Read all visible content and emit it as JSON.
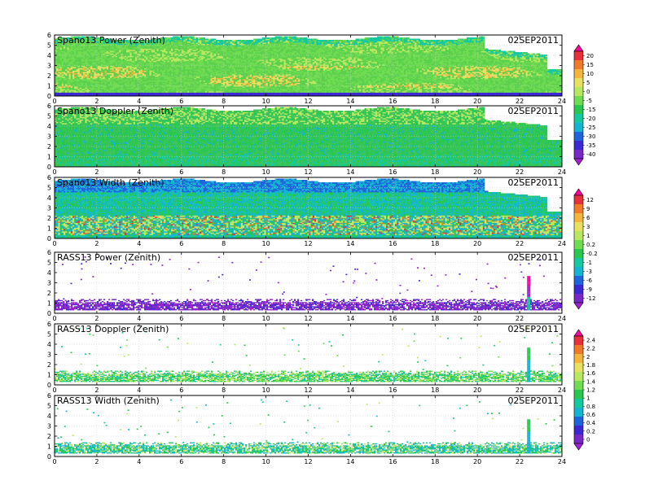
{
  "date_label": "02SEP2011",
  "x_ticks": [
    "0",
    "2",
    "4",
    "6",
    "8",
    "10",
    "12",
    "14",
    "16",
    "18",
    "20",
    "22",
    "24"
  ],
  "y_ticks": [
    "0",
    "1",
    "2",
    "3",
    "4",
    "5",
    "6"
  ],
  "colorbars": [
    {
      "labels": [
        "20",
        "15",
        "10",
        "5",
        "0",
        "-5",
        "-15",
        "-20",
        "-25",
        "-30",
        "-35",
        "-40"
      ],
      "colors": [
        "#ff00a0",
        "#e8303c",
        "#f07a28",
        "#f5b43c",
        "#e8e060",
        "#b8e860",
        "#70dc50",
        "#28c850",
        "#14c8a0",
        "#14b4d2",
        "#1e64dc",
        "#3c28d2",
        "#7828c8",
        "#a020d2"
      ]
    },
    {
      "labels": [
        "12",
        "9",
        "6",
        "3",
        "1",
        "0.2",
        "-0.2",
        "-1",
        "-3",
        "-6",
        "-9",
        "-12"
      ],
      "colors": [
        "#ff00a0",
        "#e8303c",
        "#f07a28",
        "#f5b43c",
        "#e8e060",
        "#b8e860",
        "#70dc50",
        "#28c850",
        "#14c8a0",
        "#14b4d2",
        "#1e64dc",
        "#3c28d2",
        "#7828c8",
        "#a020d2"
      ]
    },
    {
      "labels": [
        "2.4",
        "2.2",
        "2",
        "1.8",
        "1.6",
        "1.4",
        "1.2",
        "1",
        "0.8",
        "0.6",
        "0.4",
        "0.2",
        "0"
      ],
      "colors": [
        "#ff00a0",
        "#e8303c",
        "#f07a28",
        "#f5b43c",
        "#e8e060",
        "#b8e860",
        "#70dc50",
        "#28c850",
        "#14c8a0",
        "#14b4d2",
        "#1e64dc",
        "#3c28d2",
        "#7828c8",
        "#a020d2"
      ]
    }
  ],
  "chart_data": [
    {
      "type": "heatmap",
      "title": "Spano13 Power (Zenith)",
      "date": "02SEP2011",
      "xlim": [
        0,
        24
      ],
      "ylim": [
        0,
        6
      ],
      "profile": "spano_power"
    },
    {
      "type": "heatmap",
      "title": "Spano13 Doppler (Zenith)",
      "date": "02SEP2011",
      "xlim": [
        0,
        24
      ],
      "ylim": [
        0,
        6
      ],
      "profile": "spano_doppler"
    },
    {
      "type": "heatmap",
      "title": "Spano13 Width (Zenith)",
      "date": "02SEP2011",
      "xlim": [
        0,
        24
      ],
      "ylim": [
        0,
        6
      ],
      "profile": "spano_width"
    },
    {
      "type": "heatmap",
      "title": "RASS13 Power (Zenith)",
      "date": "02SEP2011",
      "xlim": [
        0,
        24
      ],
      "ylim": [
        0,
        6
      ],
      "profile": "rass_power"
    },
    {
      "type": "heatmap",
      "title": "RASS13 Doppler (Zenith)",
      "date": "02SEP2011",
      "xlim": [
        0,
        24
      ],
      "ylim": [
        0,
        6
      ],
      "profile": "rass_doppler"
    },
    {
      "type": "heatmap",
      "title": "RASS13 Width (Zenith)",
      "date": "02SEP2011",
      "xlim": [
        0,
        24
      ],
      "ylim": [
        0,
        6
      ],
      "profile": "rass_width"
    }
  ]
}
